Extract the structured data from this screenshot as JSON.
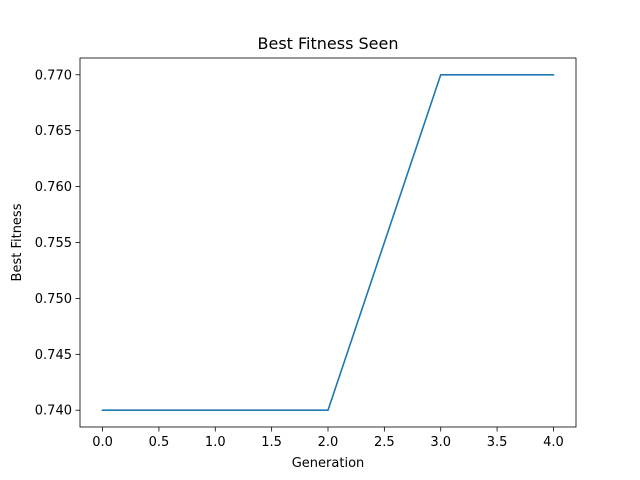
{
  "chart_data": {
    "type": "line",
    "title": "Best Fitness Seen",
    "xlabel": "Generation",
    "ylabel": "Best Fitness",
    "xlim": [
      -0.2,
      4.2
    ],
    "ylim": [
      0.7385,
      0.7715
    ],
    "xticks": [
      0.0,
      0.5,
      1.0,
      1.5,
      2.0,
      2.5,
      3.0,
      3.5,
      4.0
    ],
    "xtick_labels": [
      "0.0",
      "0.5",
      "1.0",
      "1.5",
      "2.0",
      "2.5",
      "3.0",
      "3.5",
      "4.0"
    ],
    "yticks": [
      0.74,
      0.745,
      0.75,
      0.755,
      0.76,
      0.765,
      0.77
    ],
    "ytick_labels": [
      "0.740",
      "0.745",
      "0.750",
      "0.755",
      "0.760",
      "0.765",
      "0.770"
    ],
    "grid": false,
    "series": [
      {
        "x": [
          0,
          1,
          2,
          3,
          4
        ],
        "values": [
          0.74,
          0.74,
          0.74,
          0.77,
          0.77
        ],
        "color": "#1f77b4"
      }
    ]
  }
}
